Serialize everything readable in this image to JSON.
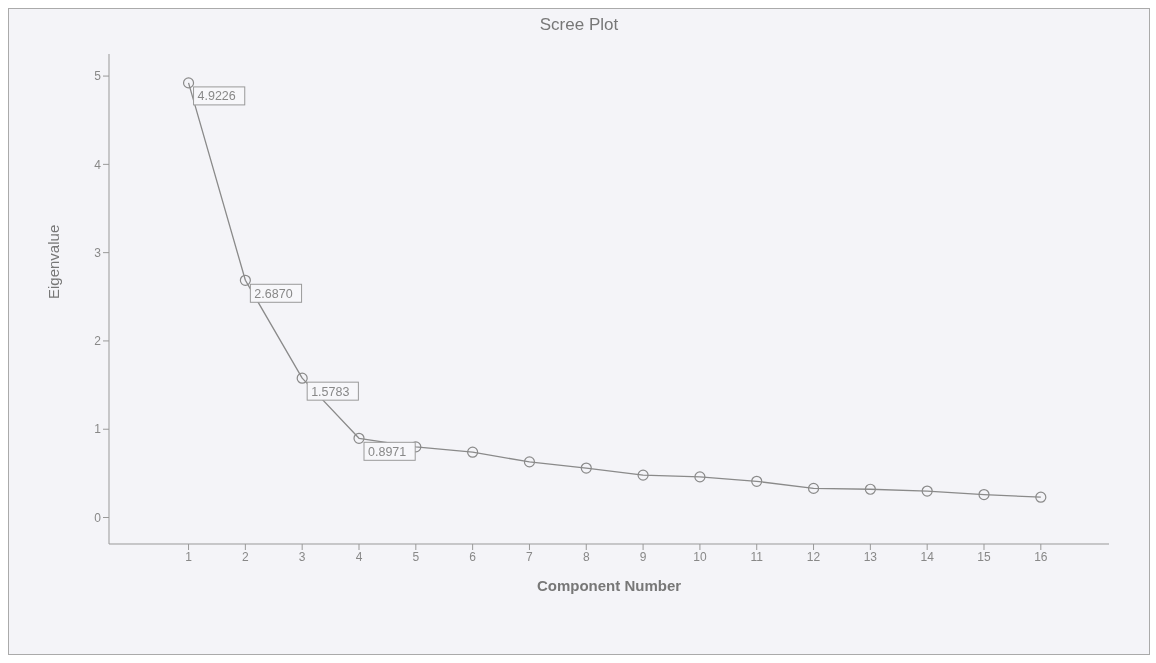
{
  "chart_data": {
    "type": "line",
    "title": "Scree Plot",
    "xlabel": "Component Number",
    "ylabel": "Eigenvalue",
    "x": [
      1,
      2,
      3,
      4,
      5,
      6,
      7,
      8,
      9,
      10,
      11,
      12,
      13,
      14,
      15,
      16
    ],
    "series": [
      {
        "color": "#8a8a8a",
        "values": [
          4.9226,
          2.687,
          1.5783,
          0.8971,
          0.8,
          0.74,
          0.63,
          0.56,
          0.48,
          0.46,
          0.41,
          0.33,
          0.32,
          0.3,
          0.26,
          0.23
        ],
        "value_labels": [
          "4.9226",
          "2.6870",
          "1.5783",
          "0.8971",
          null,
          null,
          null,
          null,
          null,
          null,
          null,
          null,
          null,
          null,
          null,
          null
        ]
      }
    ],
    "xlim": [
      -0.4,
      17.2
    ],
    "xticks": [
      1,
      2,
      3,
      4,
      5,
      6,
      7,
      8,
      9,
      10,
      11,
      12,
      13,
      14,
      15,
      16
    ],
    "ylim": [
      -0.3,
      5.25
    ],
    "yticks": [
      0,
      1,
      2,
      3,
      4,
      5
    ],
    "grid": false,
    "marker": "circle",
    "line_style": "solid"
  }
}
